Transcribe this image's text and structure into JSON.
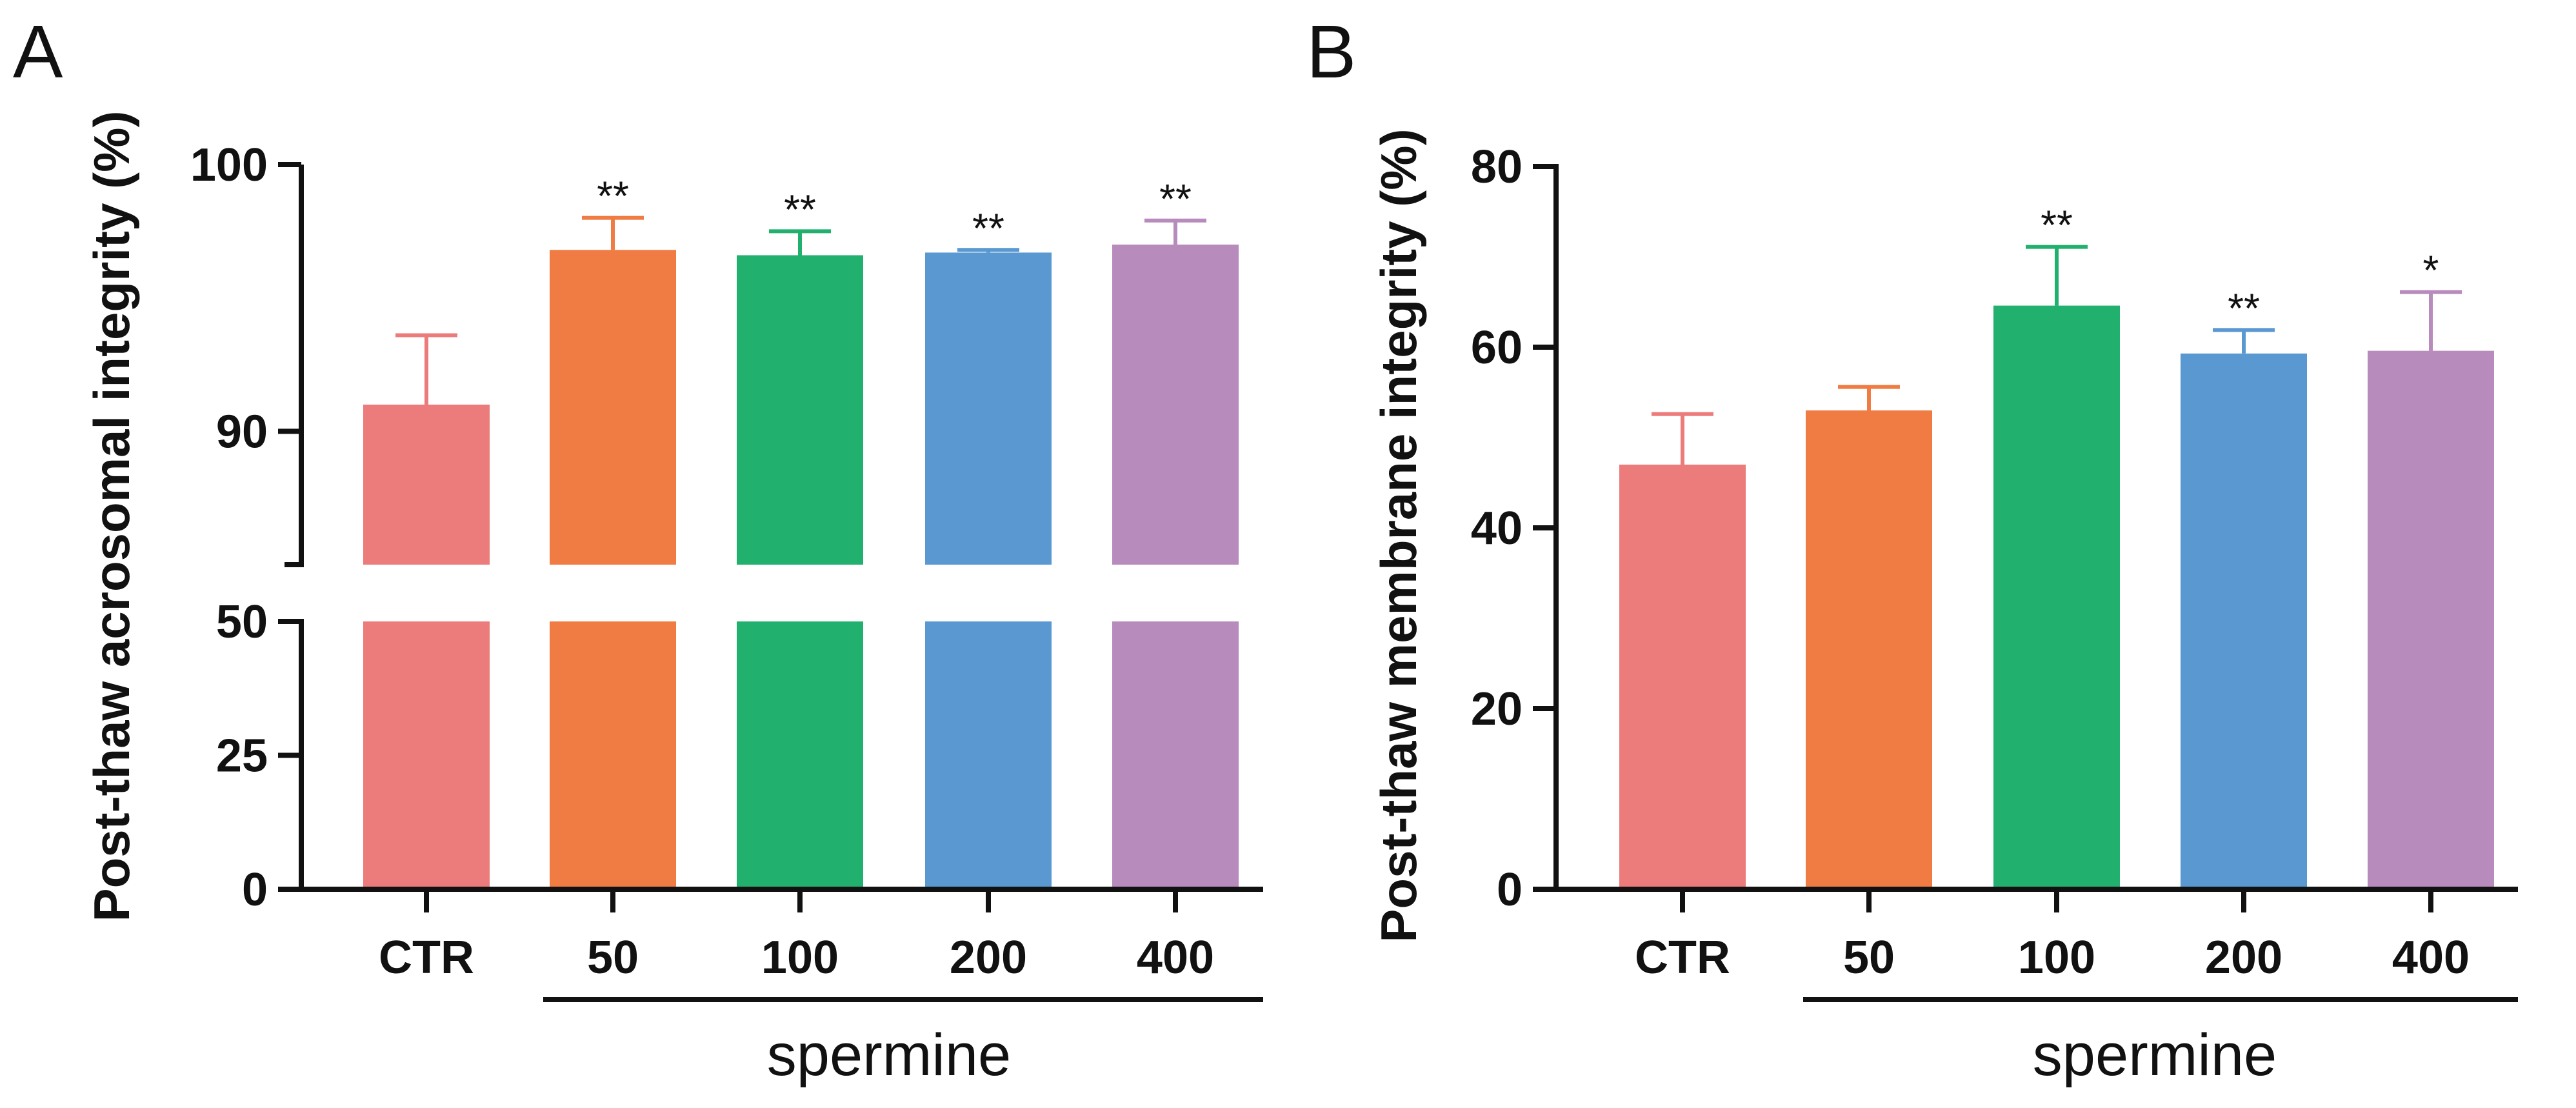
{
  "chart_data": [
    {
      "panel": "A",
      "type": "bar",
      "ylabel": "Post-thaw acrosomal integrity (%)",
      "categories": [
        "CTR",
        "50",
        "100",
        "200",
        "400"
      ],
      "group_label": "spermine",
      "values": [
        91.0,
        96.8,
        96.6,
        96.7,
        97.0
      ],
      "errors": [
        2.6,
        1.2,
        0.9,
        0.1,
        0.9
      ],
      "significance": [
        "",
        "**",
        "**",
        "**",
        "**"
      ],
      "colors": [
        "#ec7b7b",
        "#f07c43",
        "#21b06d",
        "#5a98d2",
        "#b88bbd"
      ],
      "axis_break": true,
      "lower_segment": {
        "ylim": [
          0,
          50
        ],
        "ticks": [
          "0",
          "25",
          "50"
        ]
      },
      "upper_segment": {
        "ylim": [
          85,
          100
        ],
        "ticks": [
          "90",
          "100"
        ]
      }
    },
    {
      "panel": "B",
      "type": "bar",
      "ylabel": "Post-thaw membrane integrity (%)",
      "categories": [
        "CTR",
        "50",
        "100",
        "200",
        "400"
      ],
      "group_label": "spermine",
      "values": [
        47.0,
        53.0,
        64.6,
        59.3,
        59.6
      ],
      "errors": [
        5.6,
        2.6,
        6.5,
        2.6,
        6.5
      ],
      "significance": [
        "",
        "",
        "**",
        "**",
        "*"
      ],
      "colors": [
        "#ec7b7b",
        "#f07c43",
        "#21b06d",
        "#5a98d2",
        "#b88bbd"
      ],
      "ylim": [
        0,
        80
      ],
      "ticks": [
        "0",
        "20",
        "40",
        "60",
        "80"
      ]
    }
  ]
}
